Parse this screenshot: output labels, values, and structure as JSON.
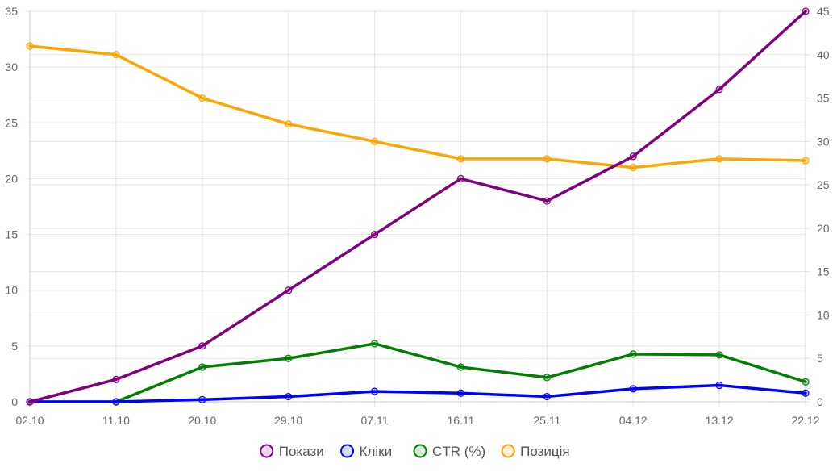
{
  "chart_data": {
    "type": "line",
    "categories": [
      "02.10",
      "11.10",
      "20.10",
      "29.10",
      "07.11",
      "16.11",
      "25.11",
      "04.12",
      "13.12",
      "22.12"
    ],
    "left_axis": {
      "ylim": [
        0,
        35
      ],
      "ticks": [
        0,
        5,
        10,
        15,
        20,
        25,
        30,
        35
      ]
    },
    "right_axis": {
      "ylim": [
        0,
        45
      ],
      "ticks": [
        0,
        5,
        10,
        15,
        20,
        25,
        30,
        35,
        40,
        45
      ]
    },
    "grid": true,
    "legend_position": "bottom",
    "series": [
      {
        "name": "Покази",
        "axis": "left",
        "color": "#800080",
        "values": [
          0,
          2,
          5,
          10,
          15,
          20,
          18,
          22,
          28,
          35
        ]
      },
      {
        "name": "Кліки",
        "axis": "right",
        "color": "#0000ff",
        "values": [
          0,
          0,
          0.25,
          0.6,
          1.2,
          1.0,
          0.6,
          1.5,
          1.9,
          1.0
        ]
      },
      {
        "name": "CTR (%)",
        "axis": "right",
        "color": "#008000",
        "values": [
          0,
          0,
          4.0,
          5.0,
          6.7,
          4.0,
          2.8,
          5.5,
          5.4,
          2.3
        ]
      },
      {
        "name": "Позиція",
        "axis": "right",
        "color": "#ffa500",
        "values": [
          41,
          40,
          35,
          32,
          30,
          28,
          28,
          27,
          28,
          27.8
        ]
      }
    ]
  }
}
